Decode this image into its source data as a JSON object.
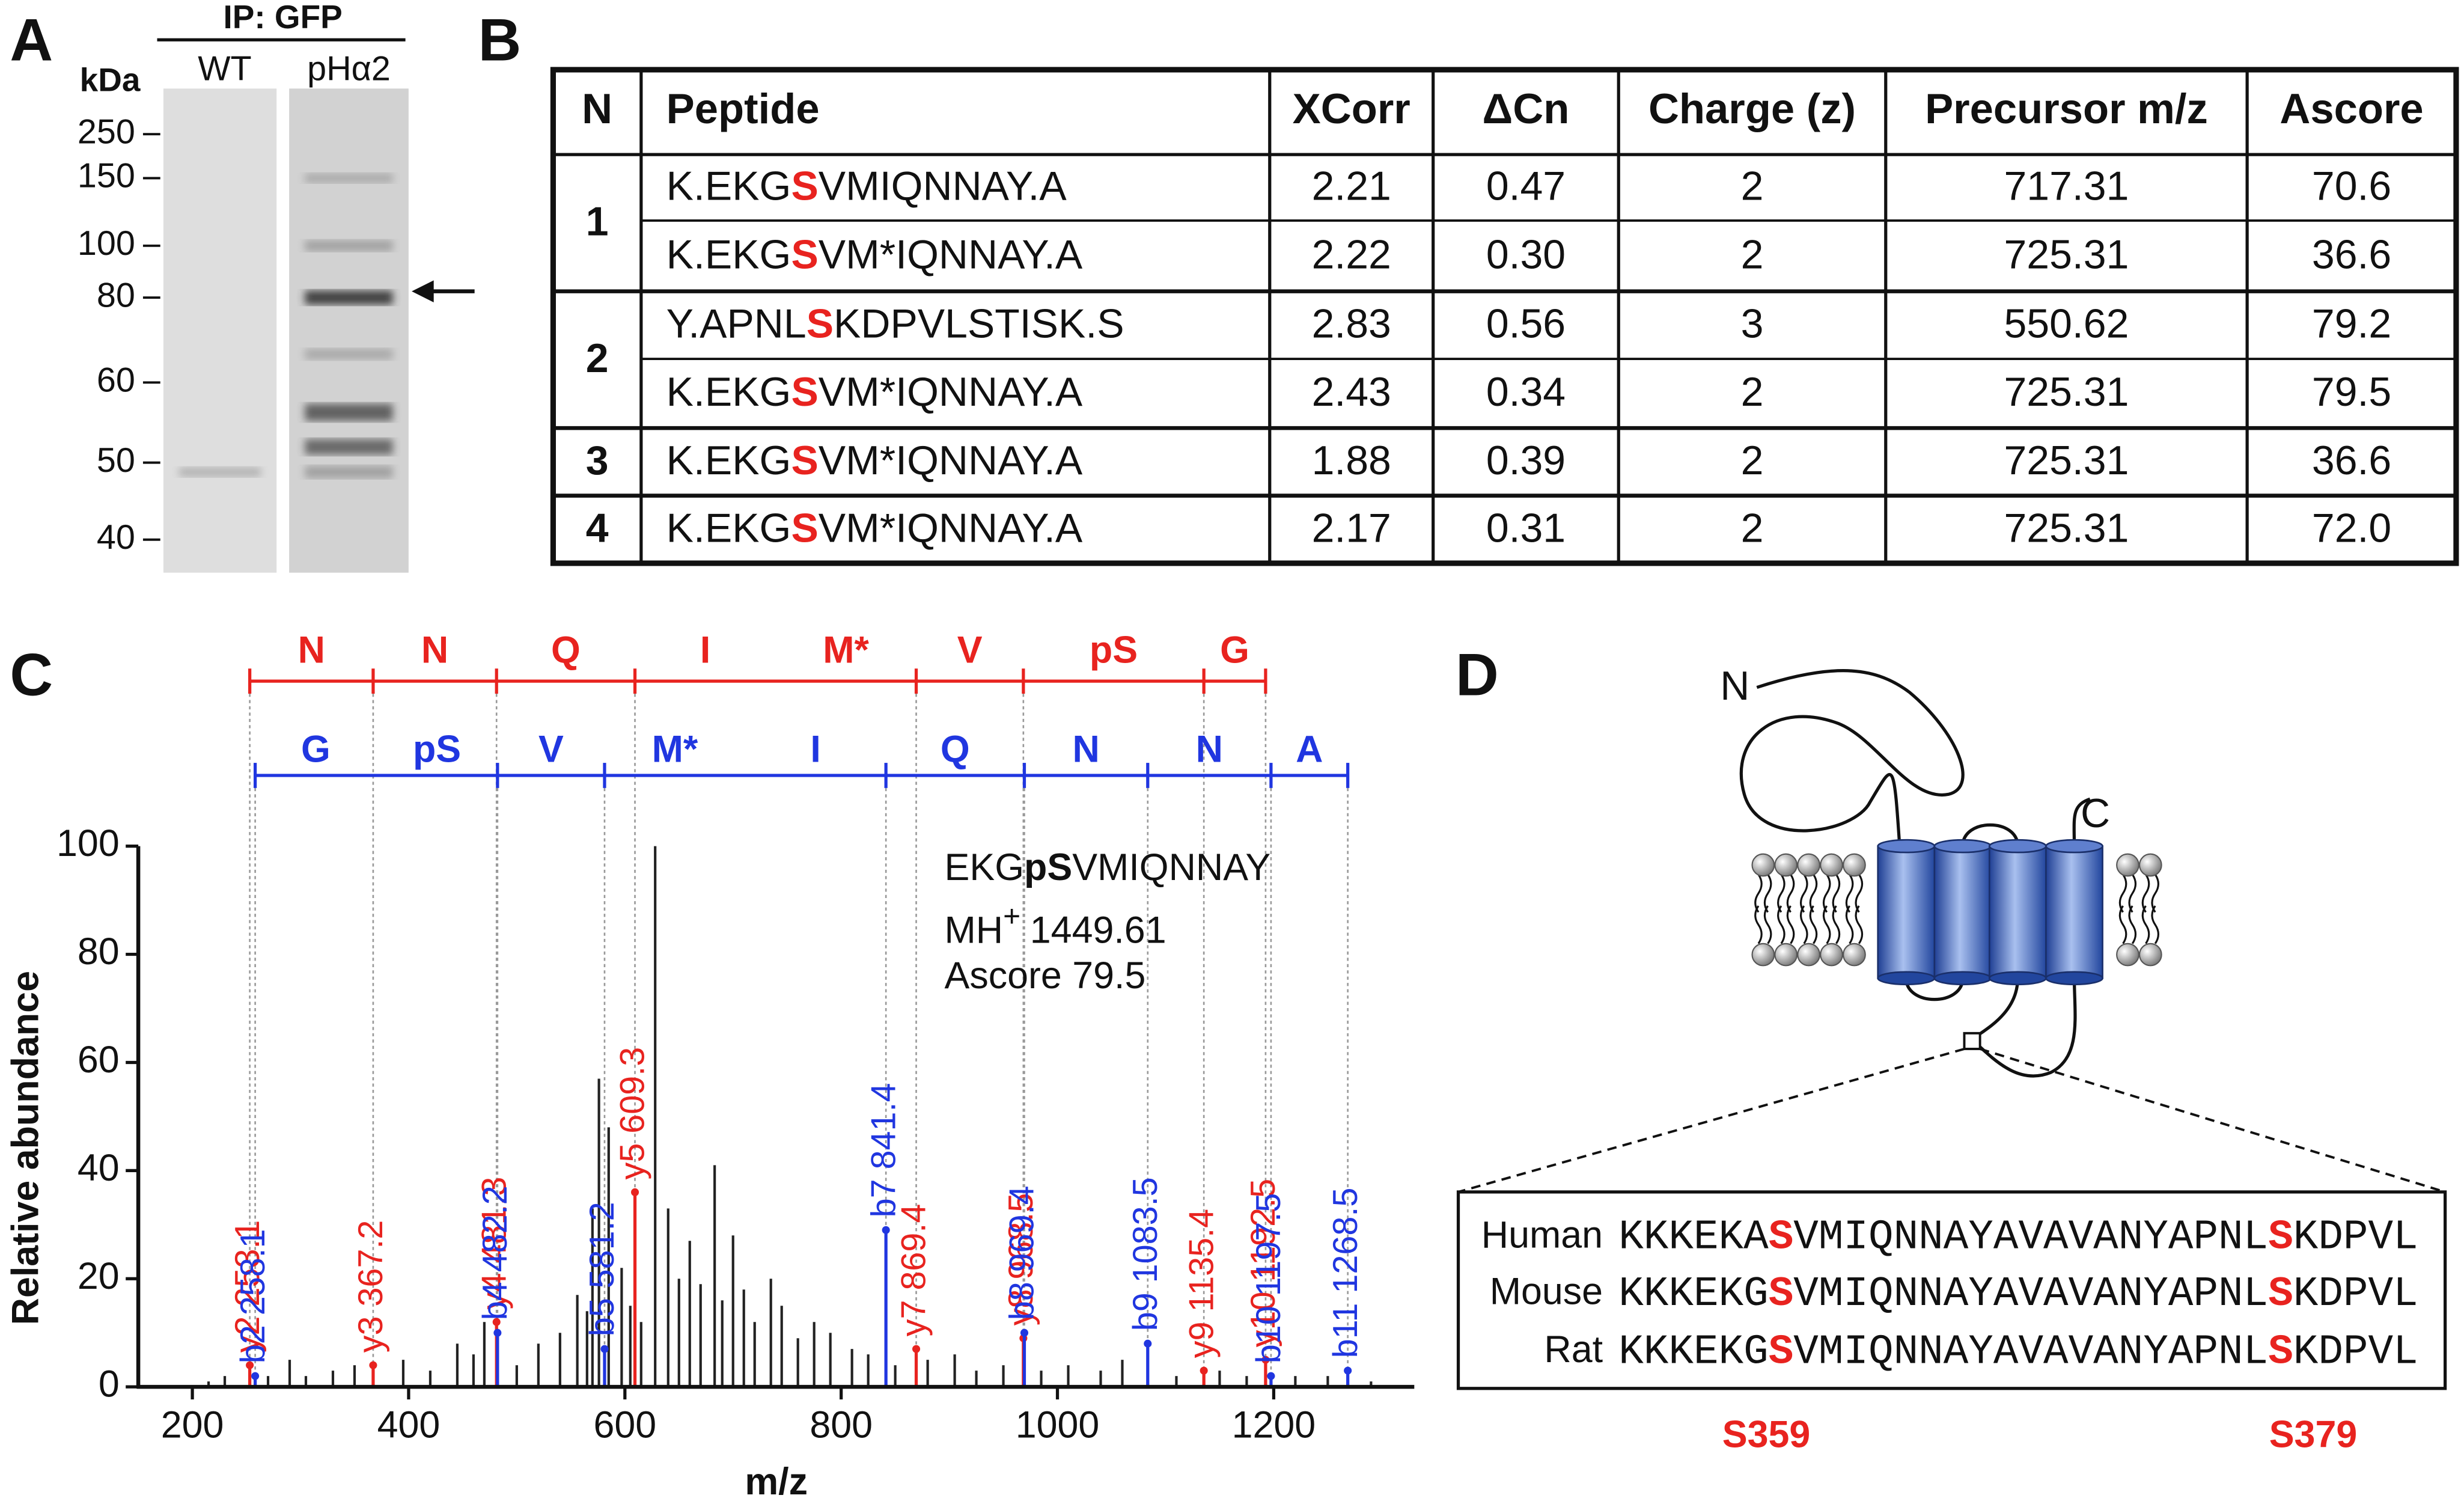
{
  "panel_a": {
    "letter": "A",
    "header": "IP: GFP",
    "lanes": [
      "WT",
      "pHα2"
    ],
    "unit": "kDa",
    "markers": [
      "250",
      "150",
      "100",
      "80",
      "60",
      "50",
      "40"
    ]
  },
  "panel_b": {
    "letter": "B",
    "header": [
      "N",
      "Peptide",
      "XCorr",
      "ΔCn",
      "Charge (z)",
      "Precursor m/z",
      "Ascore"
    ],
    "groups": [
      {
        "n": "1",
        "rows": [
          [
            [
              "K.EKG",
              "S",
              "VMIQNNAY.A"
            ],
            "2.21",
            "0.47",
            "2",
            "717.31",
            "70.6"
          ],
          [
            [
              "K.EKG",
              "S",
              "VM*IQNNAY.A"
            ],
            "2.22",
            "0.30",
            "2",
            "725.31",
            "36.6"
          ]
        ]
      },
      {
        "n": "2",
        "rows": [
          [
            [
              "Y.APNL",
              "S",
              "KDPVLSTISK.S"
            ],
            "2.83",
            "0.56",
            "3",
            "550.62",
            "79.2"
          ],
          [
            [
              "K.EKG",
              "S",
              "VM*IQNNAY.A"
            ],
            "2.43",
            "0.34",
            "2",
            "725.31",
            "79.5"
          ]
        ]
      },
      {
        "n": "3",
        "rows": [
          [
            [
              "K.EKG",
              "S",
              "VM*IQNNAY.A"
            ],
            "1.88",
            "0.39",
            "2",
            "725.31",
            "36.6"
          ]
        ]
      },
      {
        "n": "4",
        "rows": [
          [
            [
              "K.EKG",
              "S",
              "VM*IQNNAY.A"
            ],
            "2.17",
            "0.31",
            "2",
            "725.31",
            "72.0"
          ]
        ]
      }
    ]
  },
  "chart_data": {
    "type": "spectrum",
    "letter": "C",
    "xlabel": "m/z",
    "ylabel": "Relative abundance",
    "xlim": [
      150,
      1330
    ],
    "ylim": [
      0,
      100
    ],
    "xticks": [
      200,
      400,
      600,
      800,
      1000,
      1200
    ],
    "yticks": [
      0,
      20,
      40,
      60,
      80,
      100
    ],
    "peaks": {
      "color": "#222222",
      "x": [
        215,
        230,
        270,
        290,
        305,
        330,
        350,
        395,
        420,
        445,
        460,
        470,
        500,
        520,
        540,
        556,
        565,
        570,
        576,
        585,
        597,
        605,
        615,
        628,
        640,
        650,
        660,
        670,
        683,
        690,
        700,
        710,
        720,
        735,
        745,
        760,
        775,
        790,
        810,
        825,
        850,
        880,
        905,
        925,
        950,
        985,
        1010,
        1040,
        1060,
        1110,
        1150,
        1175,
        1220,
        1250,
        1290
      ],
      "values": [
        1,
        2,
        2,
        5,
        2,
        3,
        4,
        5,
        3,
        8,
        6,
        12,
        4,
        8,
        10,
        17,
        14,
        33,
        57,
        48,
        22,
        15,
        12,
        100,
        33,
        20,
        27,
        19,
        41,
        16,
        28,
        18,
        12,
        20,
        15,
        9,
        12,
        10,
        7,
        6,
        4,
        5,
        6,
        3,
        4,
        3,
        4,
        3,
        5,
        2,
        3,
        2,
        2,
        2,
        1
      ]
    },
    "y_ions": {
      "color": "#e8231f",
      "x": [
        253.1,
        367.2,
        481.3,
        609.3,
        869.4,
        968.5,
        1135.4,
        1192.5
      ],
      "values": [
        4,
        4,
        12,
        36,
        7,
        9,
        3,
        5
      ],
      "labels": [
        "y2 253.1",
        "y3 367.2",
        "y4 481.3",
        "y5 609.3",
        "y7 869.4",
        "y8 968.5",
        "y9 1135.4",
        "y10 1192.5"
      ],
      "residues": [
        [
          "N"
        ],
        [
          "N"
        ],
        [
          "Q"
        ],
        [
          "I",
          "M*"
        ],
        [
          "V"
        ],
        [
          "pS"
        ],
        [
          "G"
        ]
      ]
    },
    "b_ions": {
      "color": "#2036e0",
      "x": [
        258.1,
        482.2,
        581.2,
        841.4,
        969.4,
        1083.5,
        1197.5,
        1268.5
      ],
      "values": [
        2,
        10,
        7,
        29,
        10,
        8,
        2,
        3
      ],
      "labels": [
        "b2 258.1",
        "b4 482.2",
        "b5 581.2",
        "b7 841.4",
        "b8 969.4",
        "b9 1083.5",
        "b10 1197.5",
        "b11 1268.5"
      ],
      "residues": [
        [
          "G",
          "pS"
        ],
        [
          "V"
        ],
        [
          "M*",
          "I"
        ],
        [
          "Q"
        ],
        [
          "N"
        ],
        [
          "N"
        ],
        [
          "A"
        ]
      ]
    },
    "annotation": {
      "sequence": [
        "EKG",
        "pS",
        "VMIQNNAY"
      ],
      "mh": [
        "MH",
        "+",
        "1449.61"
      ],
      "ascore": "Ascore 79.5"
    }
  },
  "panel_d": {
    "letter": "D",
    "n_label": "N",
    "c_label": "C",
    "alignment": [
      {
        "species": "Human",
        "sequence": [
          "KKKEKA",
          "S",
          "VMIQNNAYAVAVANYAPNL",
          "S",
          "KDPVL"
        ]
      },
      {
        "species": "Mouse",
        "sequence": [
          "KKKEKG",
          "S",
          "VMIQNNAYAVAVANYAPNL",
          "S",
          "KDPVL"
        ]
      },
      {
        "species": "Rat",
        "sequence": [
          "KKKEKG",
          "S",
          "VMIQNNAYAVAVANYAPNL",
          "S",
          "KDPVL"
        ]
      }
    ],
    "sites": [
      "S359",
      "S379"
    ]
  }
}
